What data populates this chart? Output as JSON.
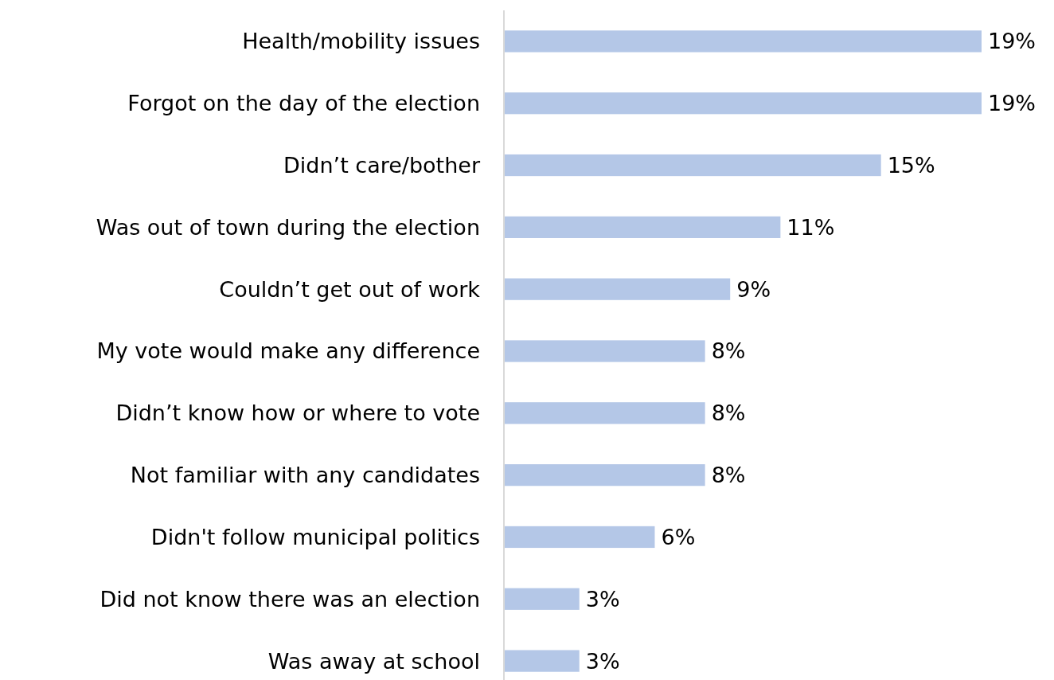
{
  "chart_data": {
    "type": "bar",
    "orientation": "horizontal",
    "categories": [
      "Health/mobility issues",
      "Forgot on the day of the election",
      "Didn’t care/bother",
      "Was out of town during the election",
      "Couldn’t get out of work",
      "My vote would make any difference",
      "Didn’t know how or where to vote",
      "Not familiar with any candidates",
      "Didn't follow municipal politics",
      "Did not know there was an election",
      "Was away at school"
    ],
    "values": [
      19,
      19,
      15,
      11,
      9,
      8,
      8,
      8,
      6,
      3,
      3
    ],
    "value_labels": [
      "19%",
      "19%",
      "15%",
      "11%",
      "9%",
      "8%",
      "8%",
      "8%",
      "6%",
      "3%",
      "3%"
    ],
    "color": "#b4c7e7"
  }
}
